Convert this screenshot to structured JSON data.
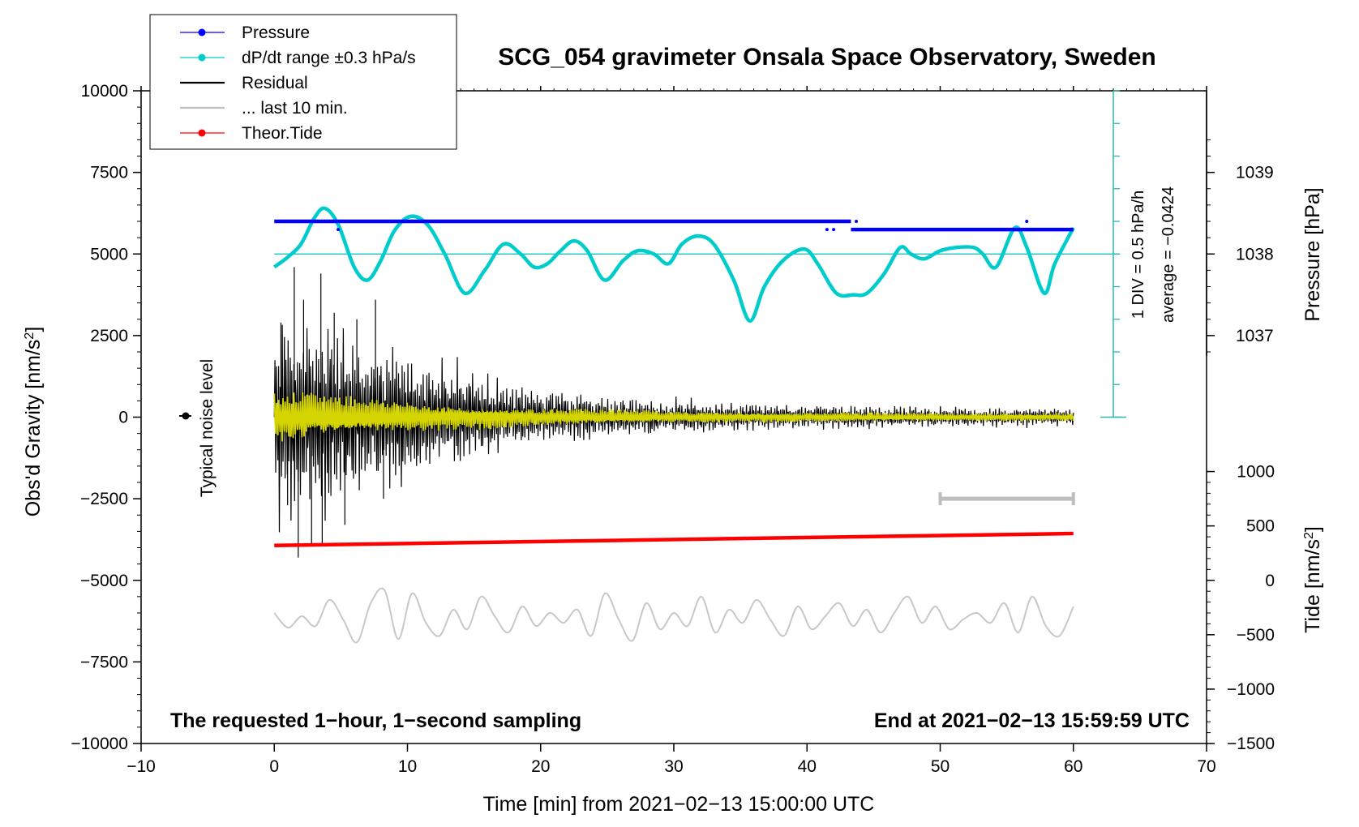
{
  "chart_data": {
    "type": "line",
    "title": "SCG_054 gravimeter Onsala Space Observatory, Sweden",
    "xlabel": "Time [min] from 2021−02−13 15:00:00 UTC",
    "ylabel_left": "Obs'd Gravity [nm/s",
    "ylabel_left_sup": "2",
    "ylabel_left_close": "]",
    "ylabel_right_pressure": "Pressure [hPa]",
    "ylabel_right_tide": "Tide [nm/s",
    "ylabel_right_tide_sup": "2",
    "ylabel_right_tide_close": "]",
    "xlim": [
      -10,
      70
    ],
    "ylim": [
      -10000,
      10000
    ],
    "x_ticks": [
      "−10",
      "0",
      "10",
      "20",
      "30",
      "40",
      "50",
      "60",
      "70"
    ],
    "y_ticks": [
      "10000",
      "7500",
      "5000",
      "2500",
      "0",
      "−2500",
      "−5000",
      "−7500",
      "−10000"
    ],
    "pressure_ticks": [
      "1039",
      "1038",
      "1037"
    ],
    "tide_ticks": [
      "1000",
      "500",
      "0",
      "−500",
      "−1000",
      "−1500"
    ],
    "legend": [
      {
        "label": "Pressure",
        "color": "#0000ff",
        "marker": true
      },
      {
        "label": "dP/dt range ±0.3 hPa/s",
        "color": "#00cccc",
        "marker": true
      },
      {
        "label": "Residual",
        "color": "#000000",
        "marker": false
      },
      {
        "label": "... last 10 min.",
        "color": "#c0c0c0",
        "marker": false
      },
      {
        "label": "Theor.Tide",
        "color": "#ff0000",
        "marker": true
      }
    ],
    "annotations": {
      "noise_level": "Typical noise level",
      "div_scale": "1 DIV = 0.5 hPa/h",
      "average": "average = −0.0424",
      "bottom_left": "The requested 1−hour, 1−second sampling",
      "bottom_right": "End at 2021−02−13 15:59:59 UTC"
    },
    "pressure_hPa": {
      "segments": [
        {
          "x": [
            0,
            43.3
          ],
          "value": 1038.4
        },
        {
          "x": [
            43.3,
            60
          ],
          "value": 1038.3
        }
      ]
    },
    "pressure_trend_hPa_per_h": {
      "x": [
        0,
        1,
        2,
        3,
        3.8,
        4.8,
        6,
        7,
        8,
        9,
        10.2,
        11.5,
        12.8,
        14.3,
        15.8,
        17.2,
        18.5,
        19.5,
        20.5,
        21.5,
        22.5,
        23.5,
        24.8,
        26.2,
        27.3,
        28.5,
        29.6,
        30.6,
        31.8,
        33,
        34.5,
        35.7,
        36.8,
        38.2,
        39.8,
        40.8,
        42.2,
        43.5,
        44.5,
        45.8,
        47,
        47.8,
        48.8,
        50,
        51.2,
        52.5,
        53.2,
        54.2,
        55.6,
        56.5,
        57.8,
        58.6,
        60
      ],
      "y": [
        4600,
        4900,
        5300,
        6100,
        6400,
        5900,
        4600,
        4200,
        4800,
        5700,
        6150,
        5900,
        5000,
        3800,
        4500,
        5300,
        5000,
        4600,
        4700,
        5100,
        5400,
        5100,
        4200,
        4800,
        5100,
        5000,
        4700,
        5300,
        5550,
        5300,
        4200,
        2950,
        4000,
        4800,
        5150,
        4700,
        3800,
        3750,
        3800,
        4400,
        5200,
        5000,
        4850,
        5100,
        5200,
        5200,
        5000,
        4600,
        5800,
        5200,
        3800,
        4700,
        5800
      ]
    },
    "residual_nm_s2": {
      "x": [
        0,
        2.5,
        5,
        7.5,
        10,
        12.5,
        15,
        17.5,
        20,
        22.5,
        25,
        27.5,
        30,
        32.5,
        35,
        37.5,
        40,
        42.5,
        45,
        47.5,
        50,
        52.5,
        55,
        57.5,
        60
      ],
      "amplitude": [
        3300,
        3000,
        2700,
        2400,
        2000,
        1650,
        1350,
        1100,
        900,
        750,
        650,
        560,
        500,
        460,
        420,
        390,
        370,
        350,
        330,
        310,
        290,
        280,
        270,
        260,
        250
      ]
    },
    "residual_filtered_envelope": {
      "x": [
        0,
        5,
        10,
        20,
        30,
        40,
        50,
        60
      ],
      "amplitude": [
        900,
        700,
        500,
        300,
        200,
        160,
        130,
        120
      ]
    },
    "last_10_min_marker": {
      "x": [
        50,
        60
      ],
      "y": -2500
    },
    "theoretical_tide_nm_s2": {
      "x": [
        0,
        60
      ],
      "y": [
        320,
        430
      ]
    },
    "last_10_min_residual": {
      "x_range": [
        0,
        60
      ],
      "offset": -6000,
      "y": [
        -6000,
        -6450,
        -6100,
        -6400,
        -5600,
        -6200,
        -6900,
        -5700,
        -5300,
        -6800,
        -5400,
        -6300,
        -6700,
        -5900,
        -6500,
        -5500,
        -6100,
        -6600,
        -5800,
        -6400,
        -6000,
        -6300,
        -5900,
        -6700,
        -5400,
        -6200,
        -6850,
        -5700,
        -6500,
        -6000,
        -6400,
        -5500,
        -6600,
        -5900,
        -6300,
        -5600,
        -6200,
        -6700,
        -5800,
        -6500,
        -6100,
        -5700,
        -6400,
        -5900,
        -6600,
        -6000,
        -5500,
        -6300,
        -5800,
        -6500,
        -6200,
        -6000,
        -6300,
        -5700,
        -6600,
        -5500,
        -6400,
        -6700,
        -5800
      ]
    }
  }
}
